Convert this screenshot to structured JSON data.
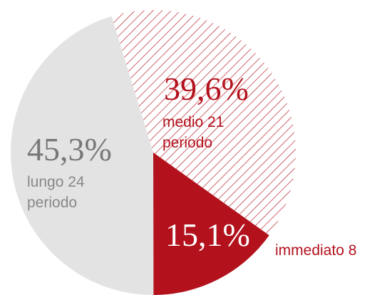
{
  "chart_data": {
    "type": "pie",
    "categories": [
      "medio 21 periodo",
      "immediato 8",
      "lungo 24 periodo"
    ],
    "values": [
      39.6,
      15.1,
      45.3
    ],
    "value_labels": [
      "39,6%",
      "15,1%",
      "45,3%"
    ],
    "colors": [
      "#b3121d",
      "#b3121d",
      "#e3e3e3"
    ],
    "hatched": [
      true,
      false,
      false
    ]
  }
}
